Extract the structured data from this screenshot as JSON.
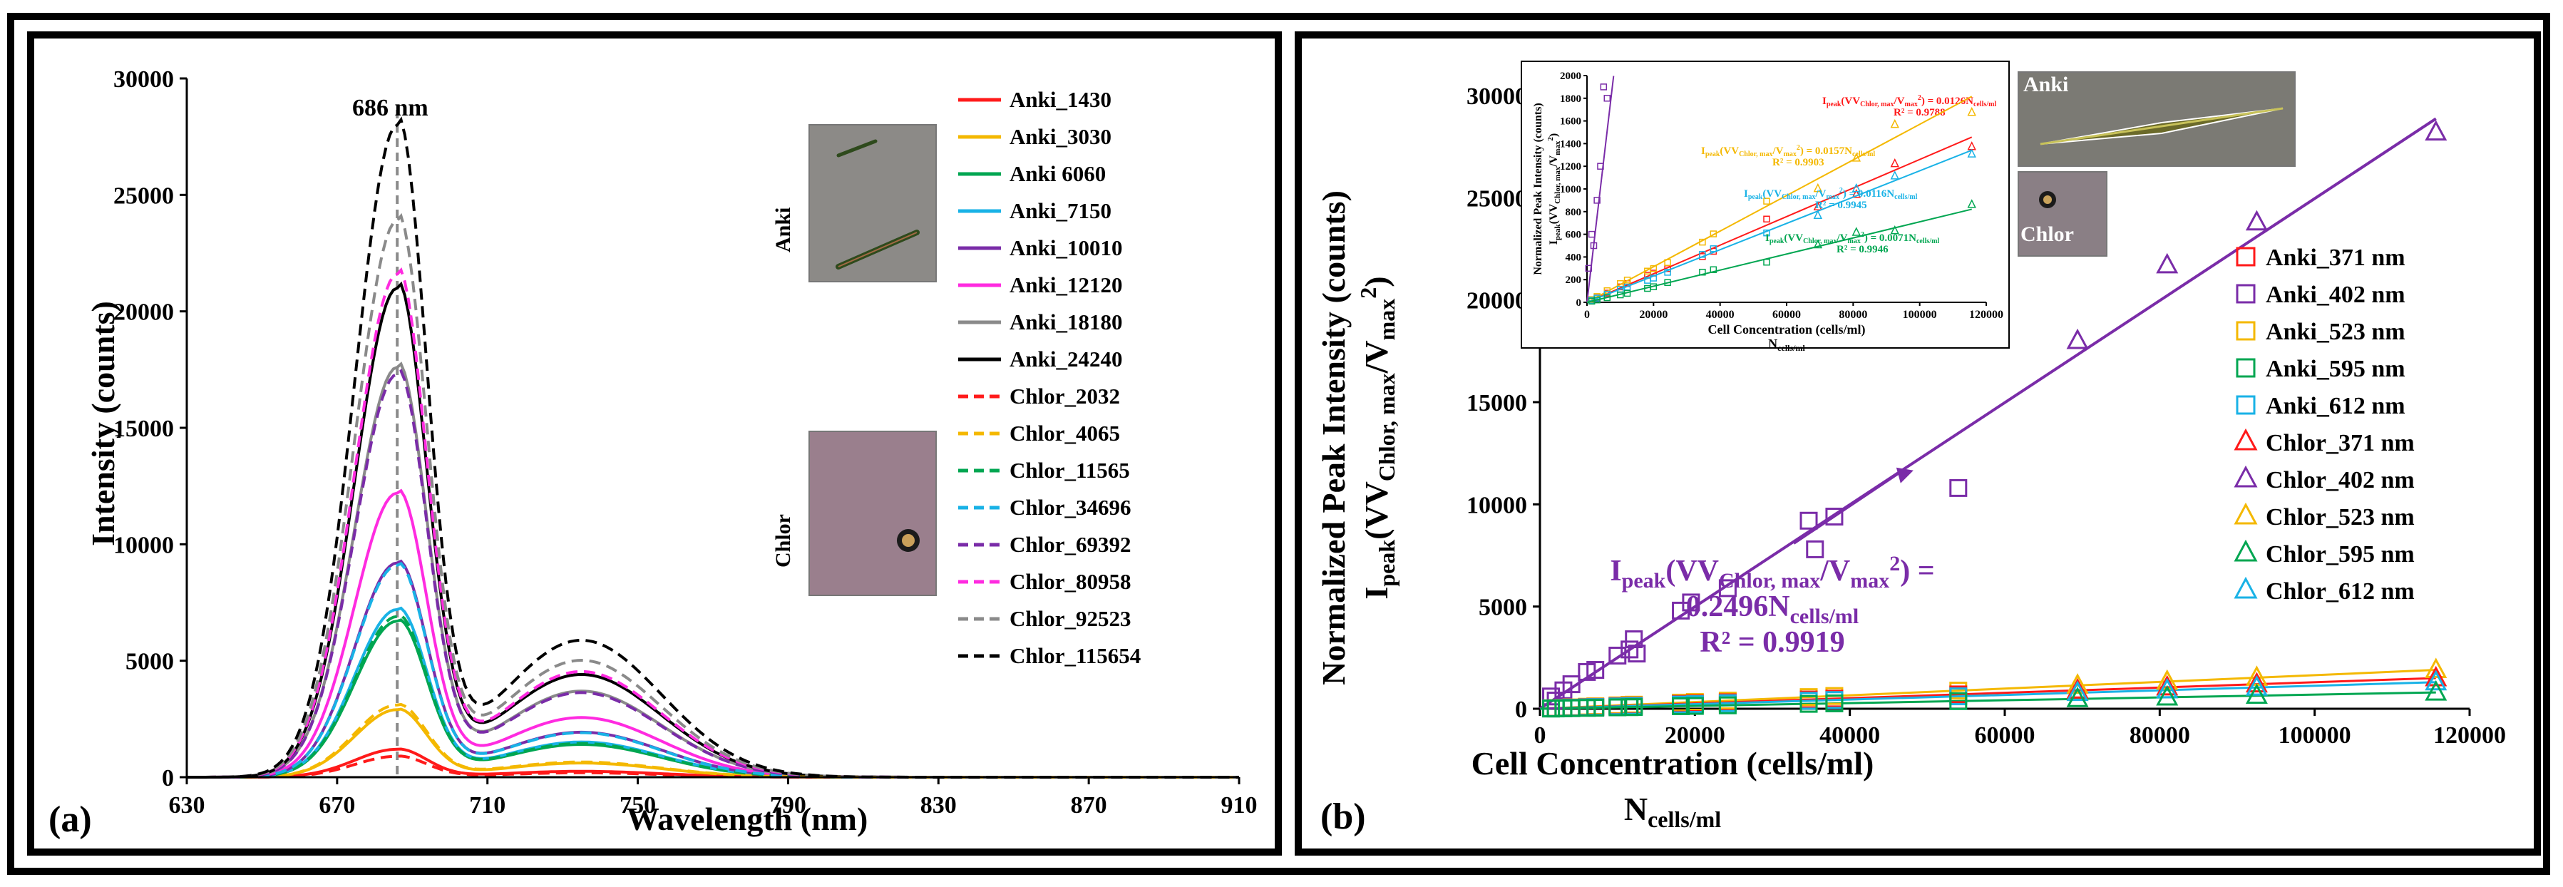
{
  "colors": {
    "red": "#ff1a1a",
    "orange": "#f4b800",
    "green": "#00a651",
    "cyan": "#19b2e6",
    "purple": "#7a2ca8",
    "magenta": "#ff2be0",
    "gray": "#8a8a8a",
    "black": "#000000",
    "purple_text": "#7a2ca8",
    "inset_red": "#ff1a1a",
    "inset_orange": "#f4b800",
    "inset_cyan": "#19b2e6",
    "inset_green": "#00a651"
  },
  "chart_data": [
    {
      "panel_label": "(a)",
      "type": "line",
      "xlabel": "Wavelength (nm)",
      "ylabel": "Intensity (counts)",
      "xlim": [
        630,
        910
      ],
      "ylim": [
        0,
        30000
      ],
      "xticks": [
        "630",
        "670",
        "710",
        "750",
        "790",
        "830",
        "870",
        "910"
      ],
      "yticks": [
        "0",
        "5000",
        "10000",
        "15000",
        "20000",
        "25000",
        "30000"
      ],
      "annotation": "686 nm",
      "peak_wavelength": 686,
      "photo_labels": [
        "Anki",
        "Chlor"
      ],
      "series": [
        {
          "name": "Anki_1430",
          "style": "solid",
          "color": "red",
          "peak": 1200
        },
        {
          "name": "Anki_3030",
          "style": "solid",
          "color": "orange",
          "peak": 2900
        },
        {
          "name": "Anki 6060",
          "style": "solid",
          "color": "green",
          "peak": 6700
        },
        {
          "name": "Anki_7150",
          "style": "solid",
          "color": "cyan",
          "peak": 7200
        },
        {
          "name": "Anki_10010",
          "style": "solid",
          "color": "purple",
          "peak": 9200
        },
        {
          "name": "Anki_12120",
          "style": "solid",
          "color": "magenta",
          "peak": 12200
        },
        {
          "name": "Anki_18180",
          "style": "solid",
          "color": "gray",
          "peak": 17600
        },
        {
          "name": "Anki_24240",
          "style": "solid",
          "color": "black",
          "peak": 21000
        },
        {
          "name": "Chlor_2032",
          "style": "dashed",
          "color": "red",
          "peak": 900
        },
        {
          "name": "Chlor_4065",
          "style": "dashed",
          "color": "orange",
          "peak": 3100
        },
        {
          "name": "Chlor_11565",
          "style": "dashed",
          "color": "green",
          "peak": 6900
        },
        {
          "name": "Chlor_34696",
          "style": "dashed",
          "color": "cyan",
          "peak": 9100
        },
        {
          "name": "Chlor_69392",
          "style": "dashed",
          "color": "purple",
          "peak": 17300
        },
        {
          "name": "Chlor_80958",
          "style": "dashed",
          "color": "magenta",
          "peak": 21600
        },
        {
          "name": "Chlor_92523",
          "style": "dashed",
          "color": "gray",
          "peak": 23900
        },
        {
          "name": "Chlor_115654",
          "style": "dashed",
          "color": "black",
          "peak": 28000
        }
      ]
    },
    {
      "panel_label": "(b)",
      "type": "scatter",
      "xlabel": "Cell Concentration (cells/ml)",
      "xlabel_sub": "N",
      "xlabel_sub_sub": "cells/ml",
      "ylabel_main": "Normalized Peak Intensity (counts)",
      "ylabel_parts": {
        "a": "I",
        "b": "peak",
        "c": "(VV",
        "d": "Chlor, max",
        "e": "/V",
        "f": "max",
        "g": "2",
        "h": ")"
      },
      "xlim": [
        0,
        120000
      ],
      "ylim": [
        0,
        30000
      ],
      "xticks": [
        "0",
        "20000",
        "40000",
        "60000",
        "80000",
        "100000",
        "120000"
      ],
      "yticks": [
        "0",
        "5000",
        "10000",
        "15000",
        "20000",
        "25000",
        "30000"
      ],
      "fit": {
        "slope": 0.2496,
        "line1": "I",
        "line1_sub": "peak",
        "line1_rest": "(VV",
        "line1_sub2": "Chlor, max",
        "line1_rest2": "/V",
        "line1_sub3": "max",
        "line1_sup": "2",
        "line1_end": ") =",
        "line2": "0.2496N",
        "line2_sub": "cells/ml",
        "line3": "R² = 0.9919"
      },
      "photo_labels": [
        "Anki",
        "Chlor"
      ],
      "legend": [
        {
          "name": "Anki_371 nm",
          "marker": "square",
          "color": "red"
        },
        {
          "name": "Anki_402 nm",
          "marker": "square",
          "color": "purple"
        },
        {
          "name": "Anki_523 nm",
          "marker": "square",
          "color": "orange"
        },
        {
          "name": "Anki_595 nm",
          "marker": "square",
          "color": "green"
        },
        {
          "name": "Anki_612 nm",
          "marker": "square",
          "color": "cyan"
        },
        {
          "name": "Chlor_371 nm",
          "marker": "triangle",
          "color": "red"
        },
        {
          "name": "Chlor_402 nm",
          "marker": "triangle",
          "color": "purple"
        },
        {
          "name": "Chlor_523 nm",
          "marker": "triangle",
          "color": "orange"
        },
        {
          "name": "Chlor_595 nm",
          "marker": "triangle",
          "color": "green"
        },
        {
          "name": "Chlor_612 nm",
          "marker": "triangle",
          "color": "cyan"
        }
      ],
      "purple_points": [
        [
          1430,
          600
        ],
        [
          2032,
          400
        ],
        [
          3030,
          900
        ],
        [
          4065,
          1200
        ],
        [
          6060,
          1800
        ],
        [
          7150,
          1900
        ],
        [
          10010,
          2600
        ],
        [
          11565,
          2900
        ],
        [
          12120,
          3400
        ],
        [
          12500,
          2700
        ],
        [
          18180,
          4800
        ],
        [
          19500,
          5200
        ],
        [
          24240,
          5900
        ],
        [
          34696,
          9200
        ],
        [
          35500,
          7800
        ],
        [
          38000,
          9400
        ],
        [
          54000,
          10800
        ],
        [
          69392,
          18000
        ],
        [
          80958,
          21700
        ],
        [
          92523,
          23800
        ],
        [
          115654,
          28200
        ]
      ],
      "low_series_endpoints": [
        {
          "color": "orange",
          "end": 1900
        },
        {
          "color": "red",
          "end": 1500
        },
        {
          "color": "cyan",
          "end": 1300
        },
        {
          "color": "green",
          "end": 800
        }
      ],
      "inset": {
        "xlabel": "Cell Concentration (cells/ml)",
        "xlabel_sub": "N",
        "xlabel_sub_sub": "cells/ml",
        "ylabel": "Normalized Peak Intensity (counts)",
        "ylabel2": "I",
        "ylabel2_sub": "peak",
        "ylabel2_rest": "(VV",
        "ylabel2_sub2": "Chlor, max",
        "ylabel2_rest2": "/V",
        "ylabel2_sub3": "max",
        "ylabel2_sup": "2",
        "ylabel2_end": ")",
        "xlim": [
          0,
          120000
        ],
        "ylim": [
          0,
          2000
        ],
        "xticks": [
          "0",
          "20000",
          "40000",
          "60000",
          "80000",
          "100000",
          "120000"
        ],
        "yticks": [
          "0",
          "200",
          "400",
          "600",
          "800",
          "1000",
          "1200",
          "1400",
          "1600",
          "1800",
          "2000"
        ],
        "fits": [
          {
            "color": "red",
            "slope": 0.0126,
            "label": "I",
            "label_sub": "peak",
            "label_rest": "(VV",
            "label_sub2": "Chlor, max",
            "label_rest2": "/V",
            "label_sub3": "max",
            "label_sup": "2",
            "label_end": ") = 0.0126N",
            "label_sub4": "cells/ml",
            "r2": "R² = 0.9788"
          },
          {
            "color": "orange",
            "slope": 0.0157,
            "label": "I",
            "label_sub": "peak",
            "label_rest": "(VV",
            "label_sub2": "Chlor, max",
            "label_rest2": "/V",
            "label_sub3": "max",
            "label_sup": "2",
            "label_end": ") = 0.0157N",
            "label_sub4": "cells/ml",
            "r2": "R² = 0.9903"
          },
          {
            "color": "cyan",
            "slope": 0.0116,
            "label": "I",
            "label_sub": "peak",
            "label_rest": "(VV",
            "label_sub2": "Chlor, max",
            "label_rest2": "/V",
            "label_sub3": "max",
            "label_sup": "2",
            "label_end": ") = 0.0116N",
            "label_sub4": "cells/ml",
            "r2": "R² = 0.9945"
          },
          {
            "color": "green",
            "slope": 0.0071,
            "label": "I",
            "label_sub": "peak",
            "label_rest": "(VV",
            "label_sub2": "Chlor, max",
            "label_rest2": "/V",
            "label_sub3": "max",
            "label_sup": "2",
            "label_end": ") = 0.0071N",
            "label_sub4": "cells/ml",
            "r2": "R² = 0.9946"
          }
        ]
      }
    }
  ]
}
